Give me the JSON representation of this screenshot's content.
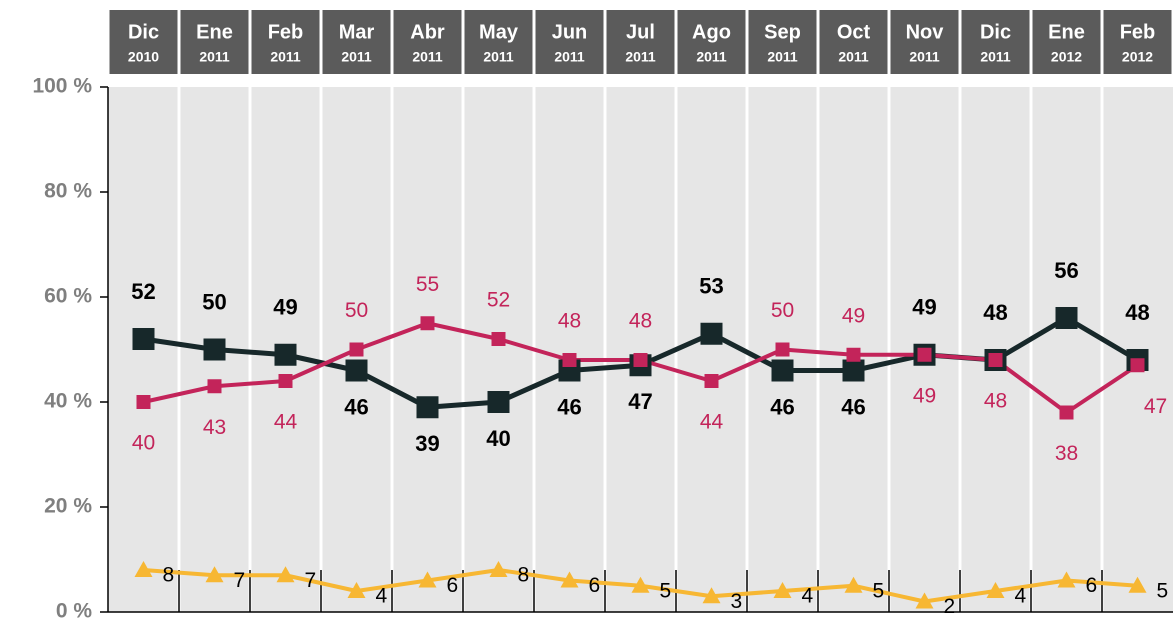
{
  "chart_data": {
    "type": "line",
    "categories": [
      "Dic",
      "Ene",
      "Feb",
      "Mar",
      "Abr",
      "May",
      "Jun",
      "Jul",
      "Ago",
      "Sep",
      "Oct",
      "Nov",
      "Dic",
      "Ene",
      "Feb"
    ],
    "category_years": [
      "2010",
      "2011",
      "2011",
      "2011",
      "2011",
      "2011",
      "2011",
      "2011",
      "2011",
      "2011",
      "2011",
      "2011",
      "2011",
      "2012",
      "2012"
    ],
    "series": [
      {
        "color": "#17282a",
        "values": [
          52,
          50,
          49,
          46,
          39,
          40,
          46,
          47,
          53,
          46,
          46,
          49,
          48,
          56,
          48
        ]
      },
      {
        "color": "#c3245a",
        "values": [
          40,
          43,
          44,
          50,
          55,
          52,
          48,
          48,
          44,
          50,
          49,
          49,
          48,
          38,
          47
        ]
      },
      {
        "color": "#f7b733",
        "values": [
          8,
          7,
          7,
          4,
          6,
          8,
          6,
          5,
          3,
          4,
          5,
          2,
          4,
          6,
          5
        ]
      }
    ],
    "ylim": [
      0,
      100
    ],
    "yticks": [
      {
        "value": 0,
        "label": "0 %"
      },
      {
        "value": 20,
        "label": "20 %"
      },
      {
        "value": 40,
        "label": "40 %"
      },
      {
        "value": 60,
        "label": "60 %"
      },
      {
        "value": 80,
        "label": "80 %"
      },
      {
        "value": 100,
        "label": "100 %"
      }
    ]
  }
}
